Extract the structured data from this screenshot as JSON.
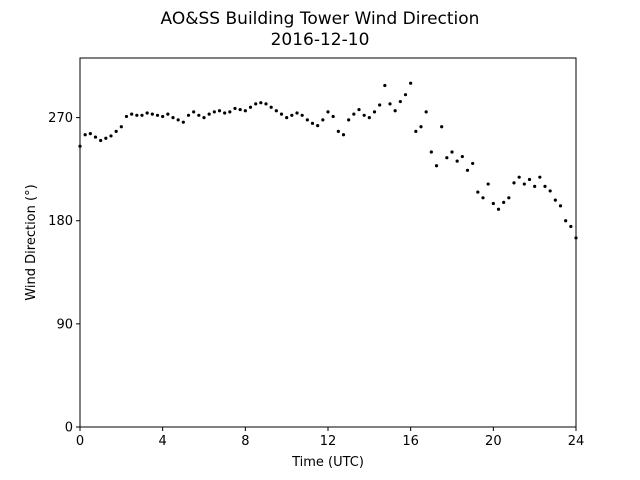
{
  "chart_data": {
    "type": "scatter",
    "title": "AO&SS Building Tower Wind Direction",
    "subtitle": "2016-12-10",
    "xlabel": "Time (UTC)",
    "ylabel": "Wind Direction (°)",
    "xlim": [
      0,
      24
    ],
    "ylim": [
      0,
      322
    ],
    "xticks": [
      0,
      4,
      8,
      12,
      16,
      20,
      24
    ],
    "yticks": [
      0,
      90,
      180,
      270
    ],
    "grid": false,
    "marker_color": "#000000",
    "series": [
      {
        "x": [
          0.0,
          0.25,
          0.5,
          0.75,
          1.0,
          1.25,
          1.5,
          1.75,
          2.0,
          2.25,
          2.5,
          2.75,
          3.0,
          3.25,
          3.5,
          3.75,
          4.0,
          4.25,
          4.5,
          4.75,
          5.0,
          5.25,
          5.5,
          5.75,
          6.0,
          6.25,
          6.5,
          6.75,
          7.0,
          7.25,
          7.5,
          7.75,
          8.0,
          8.25,
          8.5,
          8.75,
          9.0,
          9.25,
          9.5,
          9.75,
          10.0,
          10.25,
          10.5,
          10.75,
          11.0,
          11.25,
          11.5,
          11.75,
          12.0,
          12.25,
          12.5,
          12.75,
          13.0,
          13.25,
          13.5,
          13.75,
          14.0,
          14.25,
          14.5,
          14.75,
          15.0,
          15.25,
          15.5,
          15.75,
          16.0,
          16.25,
          16.5,
          16.75,
          17.0,
          17.25,
          17.5,
          17.75,
          18.0,
          18.25,
          18.5,
          18.75,
          19.0,
          19.25,
          19.5,
          19.75,
          20.0,
          20.25,
          20.5,
          20.75,
          21.0,
          21.25,
          21.5,
          21.75,
          22.0,
          22.25,
          22.5,
          22.75,
          23.0,
          23.25,
          23.5,
          23.75,
          24.0
        ],
        "y": [
          245,
          255,
          256,
          253,
          250,
          252,
          254,
          258,
          262,
          271,
          273,
          272,
          272,
          274,
          273,
          272,
          271,
          273,
          270,
          268,
          266,
          272,
          275,
          272,
          270,
          273,
          275,
          276,
          274,
          275,
          278,
          277,
          276,
          279,
          282,
          283,
          282,
          279,
          276,
          273,
          270,
          272,
          274,
          272,
          268,
          265,
          263,
          268,
          275,
          271,
          258,
          255,
          268,
          273,
          277,
          272,
          270,
          275,
          281,
          298,
          282,
          276,
          284,
          290,
          300,
          258,
          262,
          275,
          240,
          228,
          262,
          235,
          240,
          232,
          236,
          224,
          230,
          205,
          200,
          212,
          195,
          190,
          196,
          200,
          213,
          218,
          212,
          216,
          210,
          218,
          210,
          206,
          198,
          193,
          180,
          175,
          165
        ]
      }
    ]
  }
}
